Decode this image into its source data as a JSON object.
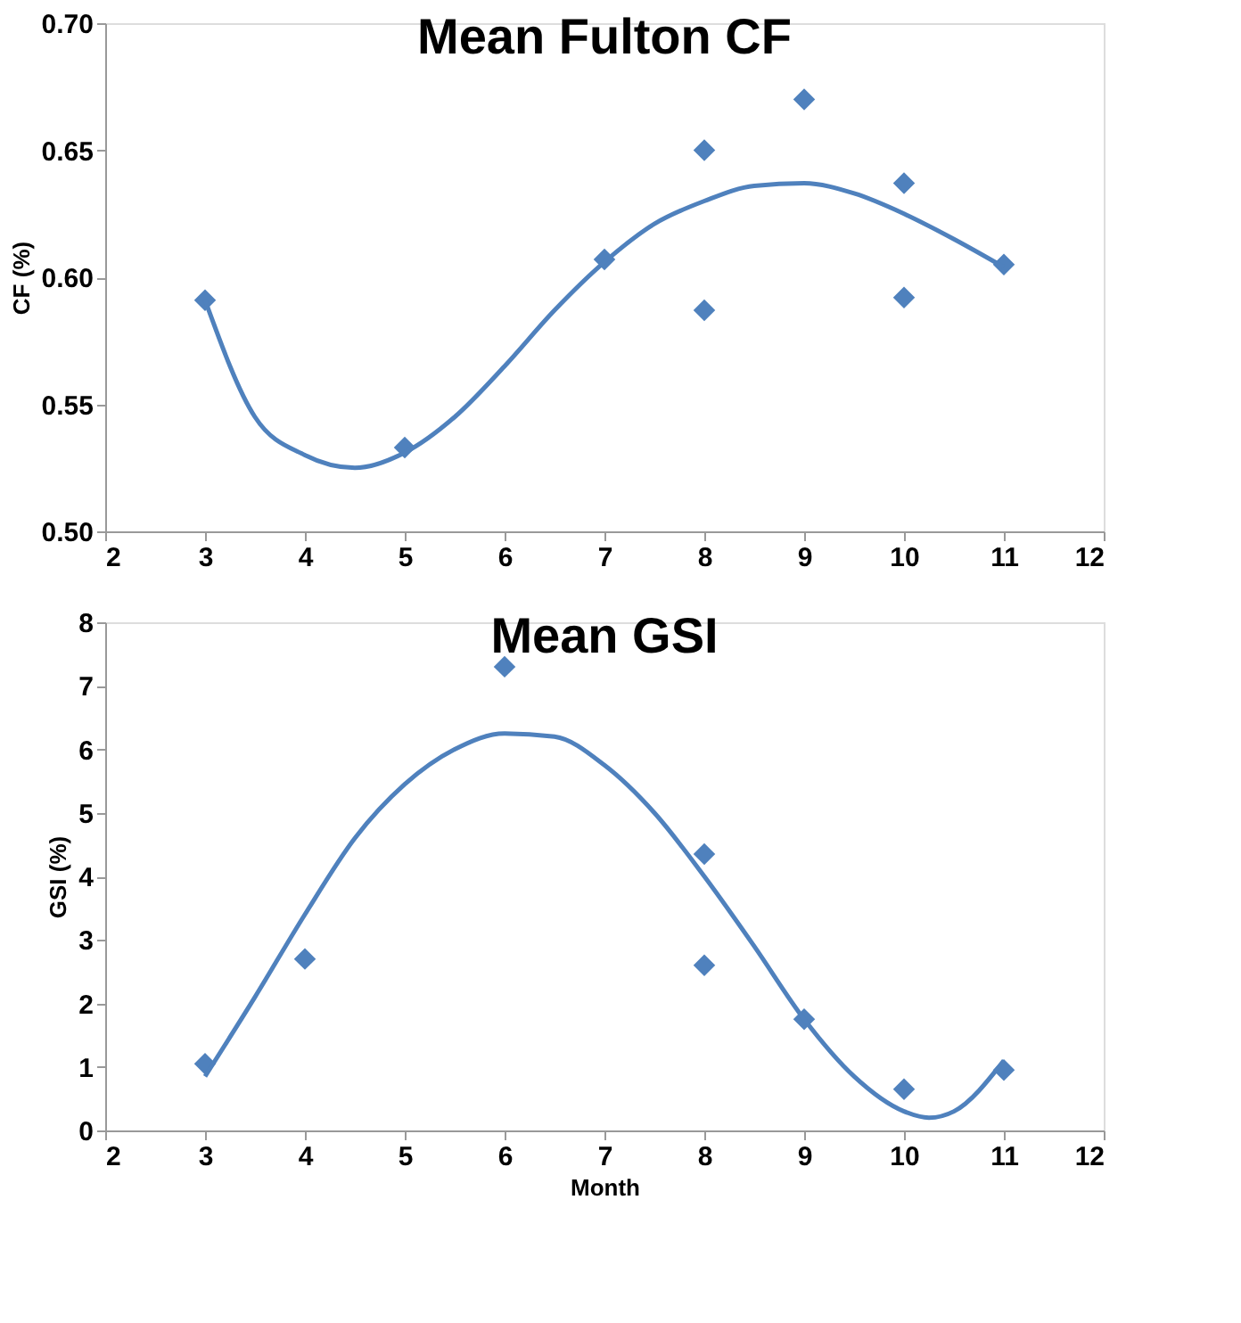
{
  "chart_data": [
    {
      "type": "scatter",
      "title": "Mean Fulton CF",
      "ylabel": "CF (%)",
      "marker": "diamond",
      "grid": false,
      "xlim": [
        2,
        12
      ],
      "xticks": [
        2,
        3,
        4,
        5,
        6,
        7,
        8,
        9,
        10,
        11,
        12
      ],
      "ylim": [
        0.5,
        0.7
      ],
      "yticks": [
        {
          "value": 0.5,
          "label": "0.50"
        },
        {
          "value": 0.55,
          "label": "0.55"
        },
        {
          "value": 0.6,
          "label": "0.60"
        },
        {
          "value": 0.65,
          "label": "0.65"
        },
        {
          "value": 0.7,
          "label": "0.70"
        }
      ],
      "series": [
        {
          "color": "#4f81bd",
          "x": [
            3,
            5,
            7,
            8,
            8,
            9,
            10,
            10,
            11
          ],
          "values": [
            0.591,
            0.533,
            0.607,
            0.65,
            0.587,
            0.67,
            0.637,
            0.592,
            0.605
          ]
        },
        {
          "type": "line",
          "color": "#4f81bd",
          "marker": "none",
          "x": [
            3,
            3.5,
            4,
            4.5,
            5,
            5.5,
            6,
            6.5,
            7,
            7.5,
            8,
            8.5,
            9,
            9.5,
            10,
            10.5,
            11
          ],
          "values": [
            0.591,
            0.545,
            0.53,
            0.525,
            0.531,
            0.545,
            0.565,
            0.587,
            0.606,
            0.621,
            0.63,
            0.636,
            0.637,
            0.633,
            0.625,
            0.615,
            0.604
          ]
        }
      ]
    },
    {
      "type": "scatter",
      "title": "Mean GSI",
      "ylabel": "GSI (%)",
      "xlabel": "Month",
      "marker": "diamond",
      "grid": false,
      "xlim": [
        2,
        12
      ],
      "xticks": [
        2,
        3,
        4,
        5,
        6,
        7,
        8,
        9,
        10,
        11,
        12
      ],
      "ylim": [
        0,
        8
      ],
      "yticks": [
        0,
        1,
        2,
        3,
        4,
        5,
        6,
        7,
        8
      ],
      "series": [
        {
          "color": "#4f81bd",
          "x": [
            3,
            4,
            6,
            8,
            8,
            9,
            10,
            11
          ],
          "values": [
            1.05,
            2.7,
            7.3,
            4.35,
            2.6,
            1.75,
            0.65,
            0.95
          ]
        },
        {
          "type": "line",
          "color": "#4f81bd",
          "marker": "none",
          "x": [
            3,
            3.5,
            4,
            4.5,
            5,
            5.5,
            6,
            6.5,
            7,
            7.5,
            8,
            8.5,
            9,
            9.5,
            10,
            10.25,
            10.5,
            11
          ],
          "values": [
            0.85,
            2.1,
            3.4,
            4.6,
            5.45,
            6.0,
            6.25,
            6.2,
            5.75,
            5.0,
            4.0,
            2.9,
            1.75,
            0.85,
            0.3,
            0.2,
            0.3,
            1.1
          ]
        }
      ]
    }
  ]
}
